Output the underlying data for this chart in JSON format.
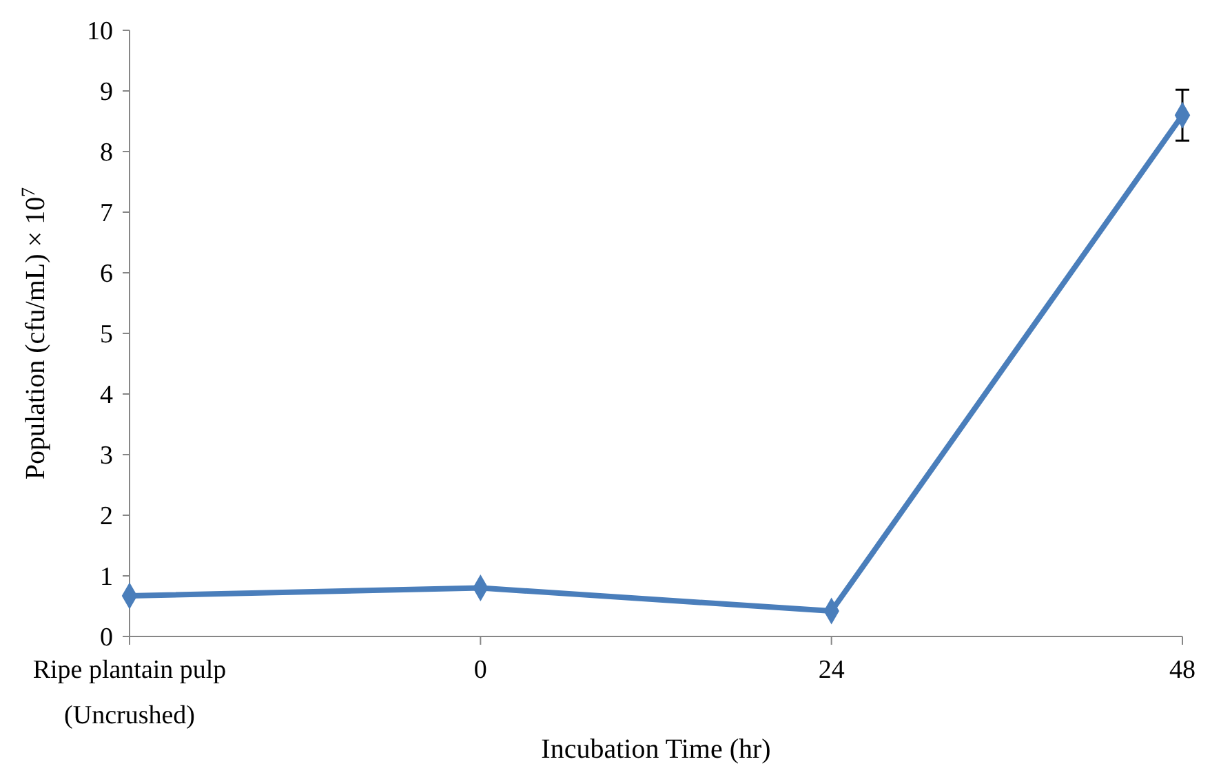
{
  "chart_data": {
    "type": "line",
    "xlabel": "Incubation Time (hr)",
    "ylabel": "Population (cfu/mL) × 10$^{7}$",
    "categories": [
      "Ripe plantain pulp (Uncrushed)",
      "0",
      "24",
      "48"
    ],
    "series": [
      {
        "color": "#4a7ebb",
        "values": [
          0.67,
          0.8,
          0.42,
          8.6
        ],
        "errors": [
          null,
          null,
          null,
          0.42
        ]
      }
    ],
    "ylim": [
      0,
      10
    ],
    "yticks": [
      0,
      1,
      2,
      3,
      4,
      5,
      6,
      7,
      8,
      9,
      10
    ],
    "marker": "diamond",
    "line_style": "solid",
    "grid": false
  }
}
